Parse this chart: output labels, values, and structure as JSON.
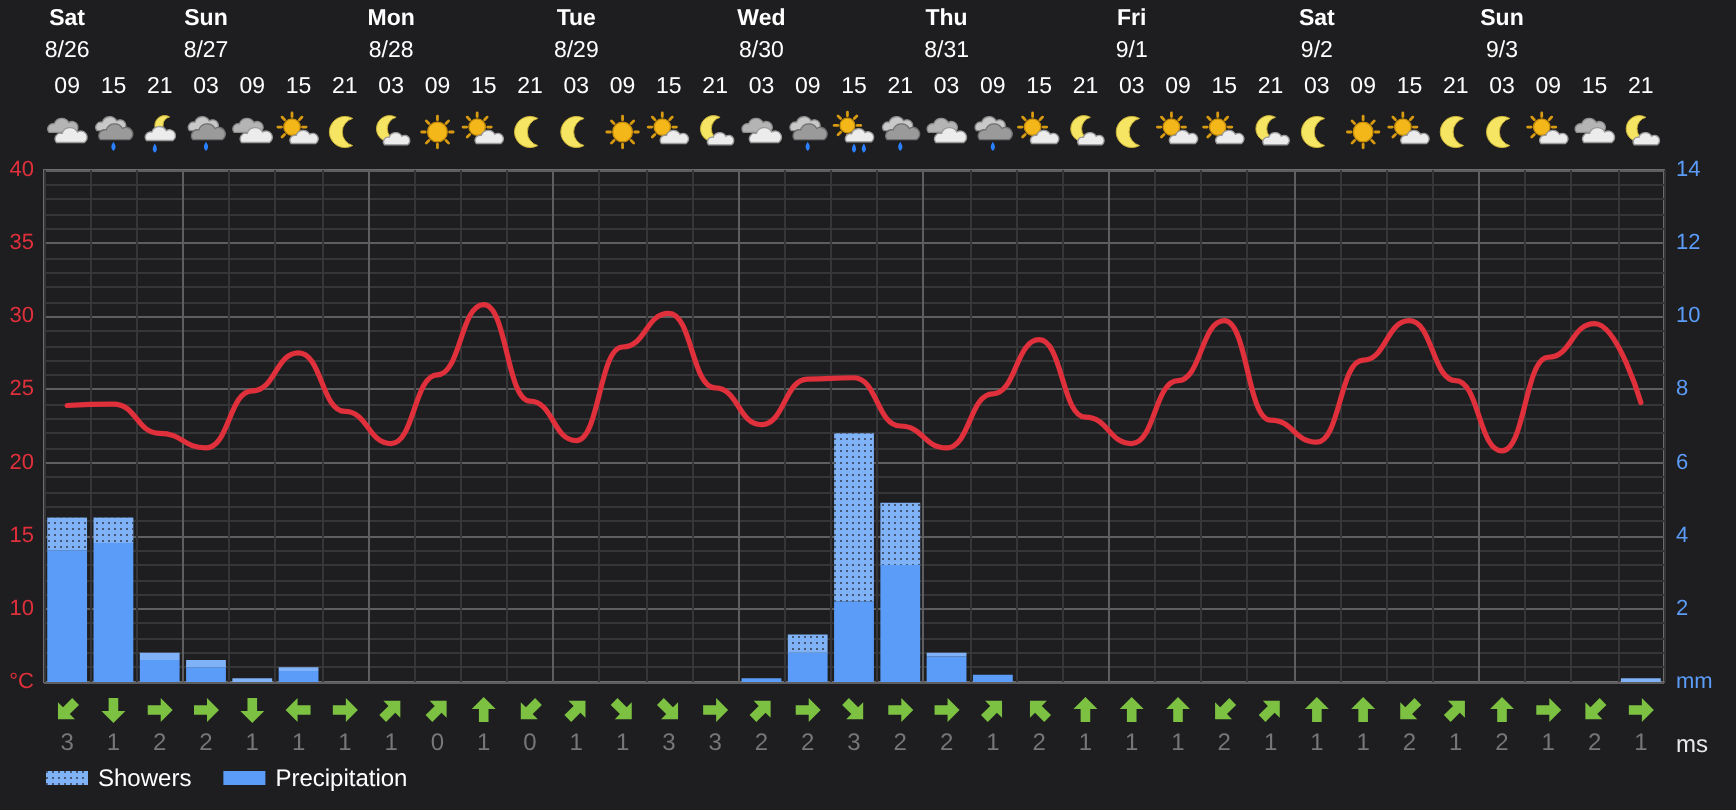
{
  "chart_data": [
    {
      "type": "line",
      "categories": [
        "Sat\n8/26\n09",
        "15",
        "21",
        "Sun\n8/27\n03",
        "09",
        "15",
        "21",
        "Mon\n8/28\n03",
        "09",
        "15",
        "21",
        "Tue\n8/29\n03",
        "09",
        "15",
        "21",
        "Wed\n8/30\n03",
        "09",
        "15",
        "21",
        "Thu\n8/31\n03",
        "09",
        "15",
        "21",
        "Fri\n9/1\n03",
        "09",
        "15",
        "21",
        "Sat\n9/2\n03",
        "09",
        "15",
        "21",
        "Sun\n9/3\n03",
        "09",
        "15",
        "21"
      ],
      "ylabel": "°C",
      "y2label": "mm",
      "ylim": [
        5,
        40
      ],
      "yticks": [
        10,
        15,
        20,
        25,
        30,
        35,
        40
      ],
      "y2lim": [
        0,
        14
      ],
      "y2ticks": [
        2,
        4,
        6,
        8,
        10,
        12,
        14
      ],
      "grid": true,
      "legend": "bottom left",
      "stacked": true,
      "marker": "none",
      "series": [
        {
          "type": "line",
          "color": "#e0303c",
          "values": [
            23.9,
            24.0,
            22.0,
            21.0,
            24.9,
            27.5,
            23.5,
            21.3,
            26.0,
            30.8,
            24.2,
            21.5,
            27.9,
            30.2,
            25.1,
            22.6,
            25.7,
            25.8,
            22.5,
            21.0,
            24.7,
            28.4,
            23.1,
            21.3,
            25.6,
            29.7,
            22.9,
            21.4,
            27.0,
            29.7,
            25.6,
            20.8,
            27.2,
            29.5,
            24.1
          ]
        },
        {
          "name": "Precipitation",
          "type": "bar",
          "axis": "y2",
          "color": "#5a9cf8",
          "values": [
            3.6,
            3.8,
            0.6,
            0.4,
            0,
            0.3,
            0,
            0,
            0,
            0,
            0,
            0,
            0,
            0,
            0,
            0.1,
            0.8,
            2.2,
            3.2,
            0.7,
            0.2,
            0,
            0,
            0,
            0,
            0,
            0,
            0,
            0,
            0,
            0,
            0,
            0,
            0,
            0
          ]
        },
        {
          "name": "Showers",
          "type": "bar",
          "axis": "y2",
          "color": "#7fb2f7",
          "values": [
            0.9,
            0.7,
            0.2,
            0.2,
            0.1,
            0.1,
            0,
            0,
            0,
            0,
            0,
            0,
            0,
            0,
            0,
            0,
            0.5,
            4.6,
            1.7,
            0.1,
            0,
            0,
            0,
            0,
            0,
            0,
            0,
            0,
            0,
            0,
            0,
            0,
            0,
            0,
            0.1
          ]
        }
      ]
    },
    {
      "type": "other",
      "values": [
        3,
        1,
        2,
        2,
        1,
        1,
        1,
        1,
        0,
        1,
        0,
        1,
        1,
        3,
        3,
        2,
        2,
        3,
        2,
        2,
        1,
        2,
        1,
        1,
        1,
        2,
        1,
        1,
        1,
        2,
        1,
        2,
        1,
        2,
        1
      ],
      "data_labels": true,
      "ylabel": "ms"
    }
  ]
}
